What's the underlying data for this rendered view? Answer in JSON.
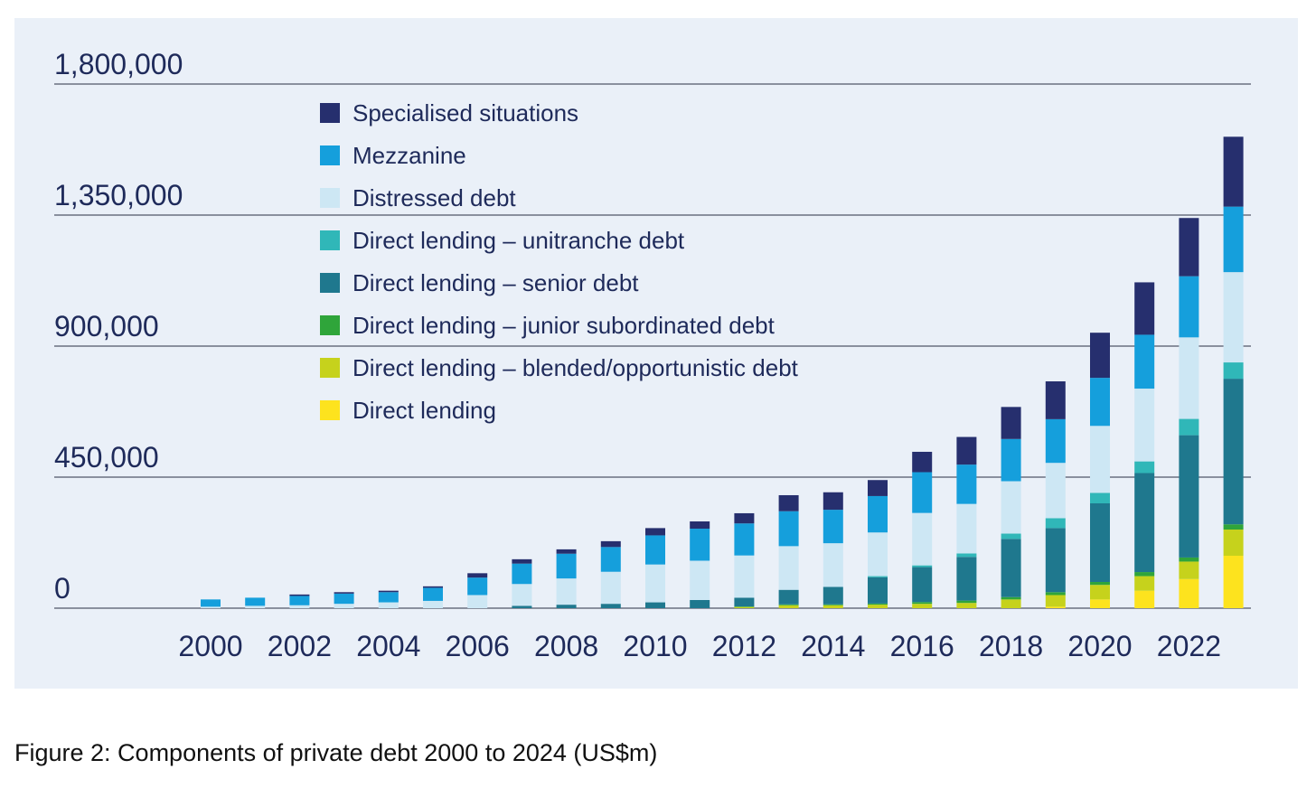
{
  "caption": "Figure 2: Components of private debt 2000 to 2024 (US$m)",
  "chart_data": {
    "type": "bar",
    "stacked": true,
    "title": "",
    "xlabel": "",
    "ylabel": "",
    "ylim": [
      0,
      1800000
    ],
    "y_ticks": [
      0,
      450000,
      900000,
      1350000,
      1800000
    ],
    "y_tick_labels": [
      "0",
      "450,000",
      "900,000",
      "1,350,000",
      "1,800,000"
    ],
    "categories": [
      "2000",
      "2001",
      "2002",
      "2003",
      "2004",
      "2005",
      "2006",
      "2007",
      "2008",
      "2009",
      "2010",
      "2011",
      "2012",
      "2013",
      "2014",
      "2015",
      "2016",
      "2017",
      "2018",
      "2019",
      "2020",
      "2021",
      "2022",
      "2023"
    ],
    "x_tick_labels": [
      "2000",
      "2002",
      "2004",
      "2006",
      "2008",
      "2010",
      "2012",
      "2014",
      "2016",
      "2018",
      "2020",
      "2022"
    ],
    "series": [
      {
        "name": "Direct lending",
        "color": "#fde31e",
        "values": [
          0,
          0,
          0,
          0,
          0,
          0,
          0,
          0,
          0,
          0,
          0,
          0,
          0,
          0,
          0,
          0,
          0,
          0,
          0,
          5000,
          30000,
          60000,
          100000,
          180000
        ]
      },
      {
        "name": "Direct lending – blended/opportunistic debt",
        "color": "#c6d21c",
        "values": [
          0,
          0,
          0,
          0,
          0,
          0,
          0,
          0,
          0,
          0,
          0,
          0,
          4000,
          10000,
          10000,
          12000,
          15000,
          18000,
          30000,
          40000,
          50000,
          50000,
          60000,
          90000
        ]
      },
      {
        "name": "Direct lending – junior subordinated debt",
        "color": "#2fa53a",
        "values": [
          0,
          0,
          0,
          0,
          0,
          0,
          0,
          0,
          0,
          0,
          0,
          0,
          2000,
          3000,
          3000,
          4000,
          6000,
          8000,
          8000,
          10000,
          10000,
          14000,
          14000,
          18000
        ]
      },
      {
        "name": "Direct lending – senior debt",
        "color": "#1f788e",
        "values": [
          0,
          0,
          0,
          0,
          0,
          0,
          0,
          8000,
          12000,
          15000,
          20000,
          28000,
          30000,
          50000,
          60000,
          90000,
          120000,
          150000,
          200000,
          220000,
          270000,
          340000,
          420000,
          500000
        ]
      },
      {
        "name": "Direct lending – unitranche debt",
        "color": "#30b7b8",
        "values": [
          0,
          0,
          0,
          0,
          0,
          0,
          0,
          0,
          0,
          0,
          0,
          0,
          0,
          0,
          0,
          4000,
          6000,
          12000,
          18000,
          34000,
          36000,
          40000,
          56000,
          56000
        ]
      },
      {
        "name": "Distressed debt",
        "color": "#cde7f4",
        "values": [
          5000,
          8000,
          10000,
          15000,
          20000,
          25000,
          45000,
          75000,
          90000,
          110000,
          130000,
          135000,
          145000,
          150000,
          150000,
          150000,
          180000,
          170000,
          180000,
          190000,
          230000,
          250000,
          280000,
          310000
        ]
      },
      {
        "name": "Mezzanine",
        "color": "#159fdc",
        "values": [
          25000,
          28000,
          32000,
          35000,
          35000,
          45000,
          60000,
          70000,
          85000,
          85000,
          100000,
          110000,
          110000,
          120000,
          115000,
          125000,
          140000,
          135000,
          145000,
          150000,
          165000,
          185000,
          210000,
          225000
        ]
      },
      {
        "name": "Specialised situations",
        "color": "#262f6e",
        "values": [
          0,
          0,
          5000,
          5000,
          5000,
          5000,
          15000,
          15000,
          15000,
          20000,
          25000,
          25000,
          35000,
          55000,
          60000,
          55000,
          70000,
          95000,
          110000,
          130000,
          155000,
          180000,
          200000,
          240000
        ]
      }
    ]
  }
}
